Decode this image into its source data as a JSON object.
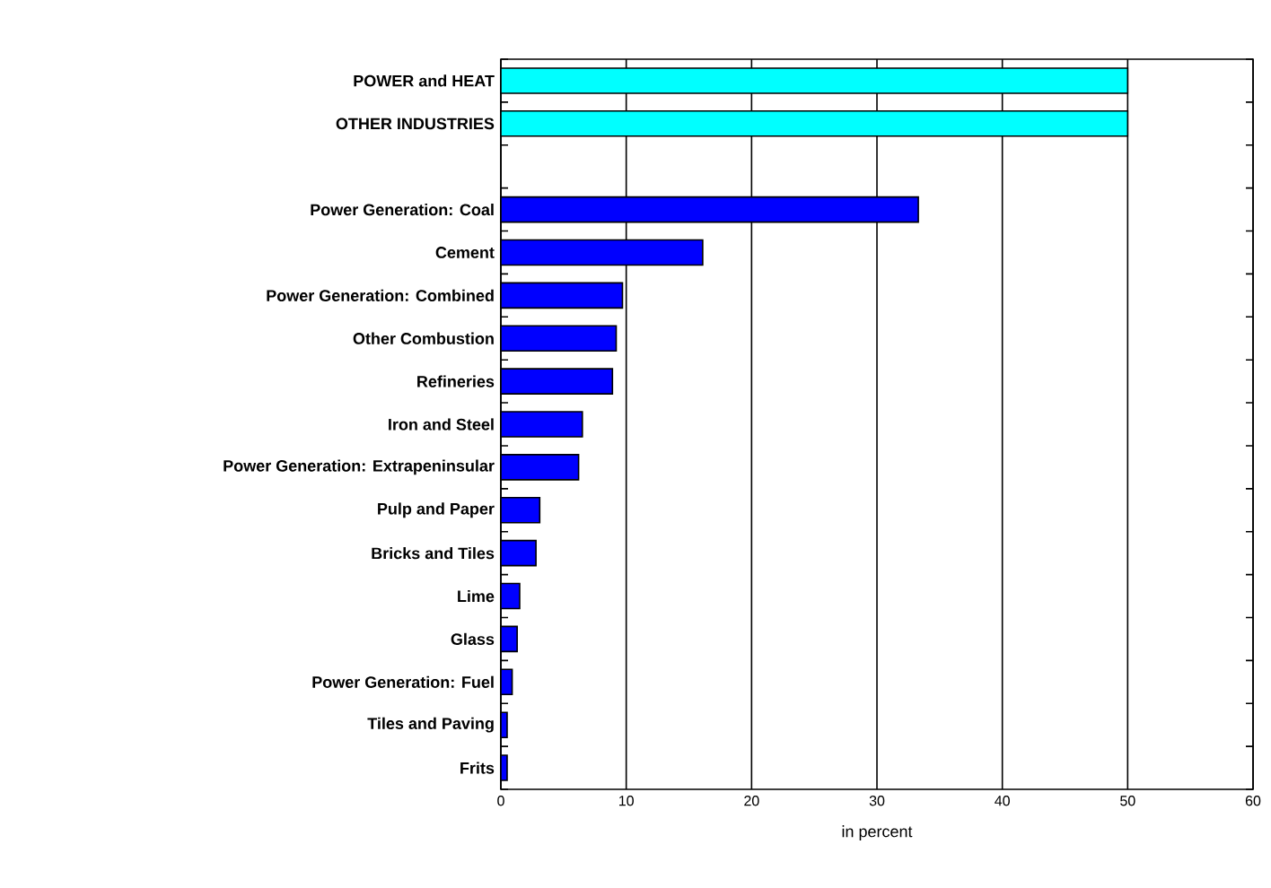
{
  "chart_data": {
    "type": "bar",
    "orientation": "horizontal",
    "xlabel": "in percent",
    "categories": [
      "POWER and HEAT",
      "OTHER INDUSTRIES",
      null,
      "Power Generation: Coal",
      "Cement",
      "Power Generation: Combined",
      "Other Combustion",
      "Refineries",
      "Iron and Steel",
      "Power Generation: Extrapeninsular",
      "Pulp and Paper",
      "Bricks and Tiles",
      "Lime",
      "Glass",
      "Power Generation: Fuel",
      "Tiles and Paving",
      "Frits"
    ],
    "values": [
      50,
      50,
      null,
      33.3,
      16.1,
      9.7,
      9.2,
      8.9,
      6.5,
      6.2,
      3.1,
      2.8,
      1.5,
      1.3,
      0.9,
      0.5,
      0.5
    ],
    "colors": [
      "#00ffff",
      "#00ffff",
      null,
      "#0000ff",
      "#0000ff",
      "#0000ff",
      "#0000ff",
      "#0000ff",
      "#0000ff",
      "#0000ff",
      "#0000ff",
      "#0000ff",
      "#0000ff",
      "#0000ff",
      "#0000ff",
      "#0000ff",
      "#0000ff"
    ],
    "xlim": [
      0,
      60
    ],
    "xticks": [
      0,
      10,
      20,
      30,
      40,
      50,
      60
    ],
    "grid": "x"
  }
}
